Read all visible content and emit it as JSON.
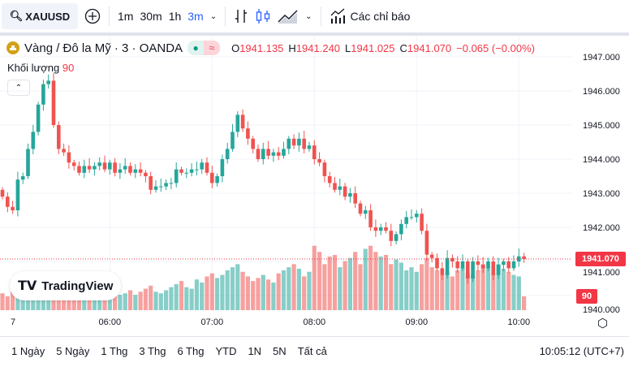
{
  "toolbar": {
    "symbol": "XAUUSD",
    "intervals": [
      "1m",
      "30m",
      "1h",
      "3m"
    ],
    "active_interval": "3m",
    "indicators_label": "Các chỉ báo"
  },
  "legend": {
    "title": "Vàng / Đô la Mỹ · 3 · OANDA",
    "o_label": "O",
    "o": "1941.135",
    "h_label": "H",
    "h": "1941.240",
    "l_label": "L",
    "l": "1941.025",
    "c_label": "C",
    "c": "1941.070",
    "change": "−0.065 (−0.00%)",
    "volume_label": "Khối lượng",
    "volume_value": "90"
  },
  "colors": {
    "up": "#26a69a",
    "down": "#ef5350",
    "accent": "#2962ff",
    "red": "#f23645"
  },
  "logo": "TradingView",
  "chart_data": {
    "type": "candlestick",
    "price_ticks": [
      "1947.000",
      "1946.000",
      "1945.000",
      "1944.000",
      "1943.000",
      "1942.000",
      "1941.000",
      "1940.000"
    ],
    "price_range": [
      1939.9,
      1948.2
    ],
    "last_price": "1941.070",
    "last_volume": "90",
    "time_ticks": [
      {
        "label": "7",
        "index": 2
      },
      {
        "label": "06:00",
        "index": 21
      },
      {
        "label": "07:00",
        "index": 41
      },
      {
        "label": "08:00",
        "index": 61
      },
      {
        "label": "09:00",
        "index": 81
      },
      {
        "label": "10:00",
        "index": 101
      }
    ],
    "first_open": 1943.1,
    "closes": [
      1942.9,
      1942.6,
      1942.5,
      1943.4,
      1943.5,
      1944.3,
      1944.8,
      1945.6,
      1946.2,
      1946.3,
      1945.0,
      1944.3,
      1944.2,
      1943.9,
      1943.8,
      1943.6,
      1943.8,
      1943.7,
      1943.8,
      1943.9,
      1943.7,
      1943.9,
      1943.6,
      1943.7,
      1943.8,
      1943.6,
      1943.7,
      1943.6,
      1943.5,
      1943.1,
      1943.2,
      1943.2,
      1943.3,
      1943.3,
      1943.7,
      1943.6,
      1943.6,
      1943.7,
      1943.7,
      1943.9,
      1943.6,
      1943.3,
      1943.5,
      1944.0,
      1944.3,
      1944.8,
      1945.3,
      1944.9,
      1944.6,
      1944.3,
      1944.0,
      1944.3,
      1944.1,
      1944.2,
      1944.1,
      1944.3,
      1944.6,
      1944.4,
      1944.6,
      1944.3,
      1944.4,
      1944.0,
      1943.9,
      1943.5,
      1943.3,
      1943.1,
      1943.2,
      1942.9,
      1943.0,
      1942.7,
      1942.4,
      1942.5,
      1942.0,
      1941.9,
      1942.0,
      1941.9,
      1941.6,
      1941.8,
      1942.1,
      1942.3,
      1942.3,
      1942.4,
      1941.9,
      1941.2,
      1941.1,
      1940.8,
      1940.6,
      1941.1,
      1941.0,
      1940.8,
      1941.0,
      1940.5,
      1941.0,
      1940.9,
      1940.8,
      1941.0,
      1940.6,
      1940.9,
      1941.0,
      1940.8,
      1941.0,
      1941.15,
      1941.07
    ],
    "volumes": [
      110,
      90,
      140,
      120,
      100,
      150,
      130,
      160,
      180,
      200,
      170,
      140,
      120,
      110,
      100,
      90,
      120,
      110,
      100,
      130,
      110,
      90,
      120,
      100,
      110,
      130,
      100,
      120,
      140,
      160,
      120,
      110,
      130,
      150,
      170,
      190,
      150,
      140,
      200,
      180,
      220,
      240,
      210,
      230,
      260,
      280,
      300,
      250,
      220,
      190,
      210,
      230,
      200,
      180,
      240,
      260,
      280,
      300,
      270,
      220,
      250,
      420,
      380,
      300,
      350,
      360,
      280,
      320,
      340,
      380,
      300,
      400,
      420,
      380,
      350,
      360,
      300,
      330,
      310,
      260,
      280,
      250,
      300,
      340,
      280,
      260,
      230,
      250,
      220,
      260,
      280,
      240,
      230,
      260,
      300,
      280,
      240,
      300,
      270,
      250,
      230,
      220,
      90
    ]
  },
  "bottom": {
    "ranges": [
      "1 Ngày",
      "5 Ngày",
      "1 Thg",
      "3 Thg",
      "6 Thg",
      "YTD",
      "1N",
      "5N",
      "Tất cả"
    ],
    "clock": "10:05:12 (UTC+7)"
  }
}
